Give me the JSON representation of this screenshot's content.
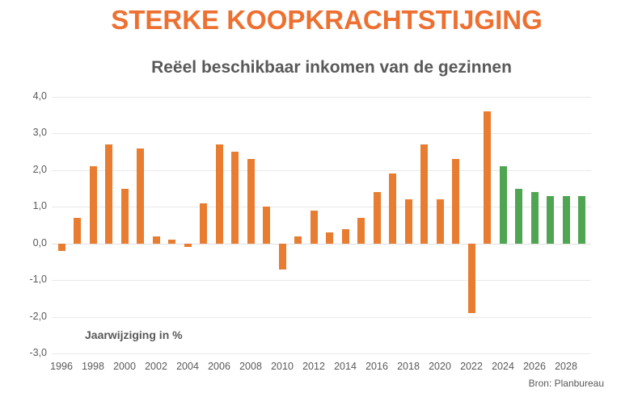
{
  "page": {
    "title": "STERKE KOOPKRACHTSTIJGING"
  },
  "chart_data": {
    "type": "bar",
    "title": "Reëel beschikbaar inkomen van de gezinnen",
    "annotation": "Jaarwijziging in %",
    "source": "Bron: Planbureau",
    "categories": [
      1996,
      1997,
      1998,
      1999,
      2000,
      2001,
      2002,
      2003,
      2004,
      2005,
      2006,
      2007,
      2008,
      2009,
      2010,
      2011,
      2012,
      2013,
      2014,
      2015,
      2016,
      2017,
      2018,
      2019,
      2020,
      2021,
      2022,
      2023,
      2024,
      2025,
      2026,
      2027,
      2028,
      2029
    ],
    "values": [
      -0.2,
      0.7,
      2.1,
      2.7,
      1.5,
      2.6,
      0.2,
      0.1,
      -0.1,
      1.1,
      2.7,
      2.5,
      2.3,
      1.0,
      -0.7,
      0.2,
      0.9,
      0.3,
      0.4,
      0.7,
      1.4,
      1.9,
      1.2,
      2.7,
      1.2,
      2.3,
      -1.9,
      3.6,
      2.1,
      1.5,
      1.4,
      1.3,
      1.3,
      1.3
    ],
    "forecast_start_index": 28,
    "ylim": [
      -3.0,
      4.0
    ],
    "ytick_values": [
      4,
      3,
      2,
      1,
      0,
      -1,
      -2,
      -3
    ],
    "ytick_labels": [
      "4,0",
      "3,0",
      "2,0",
      "1,0",
      "0,0",
      "-1,0",
      "-2,0",
      "-3,0"
    ],
    "xtick_labels": [
      "1996",
      "1998",
      "2000",
      "2002",
      "2004",
      "2006",
      "2008",
      "2010",
      "2012",
      "2014",
      "2016",
      "2018",
      "2020",
      "2022",
      "2024",
      "2026",
      "2028"
    ],
    "grid": true,
    "legend": "none",
    "colors": {
      "title": "#ED7031",
      "bar_actual": "#E87D31",
      "bar_forecast": "#4FA552",
      "text": "#595959",
      "gridline": "#E9E9E9",
      "zero_line": "#DEDEDE"
    }
  }
}
